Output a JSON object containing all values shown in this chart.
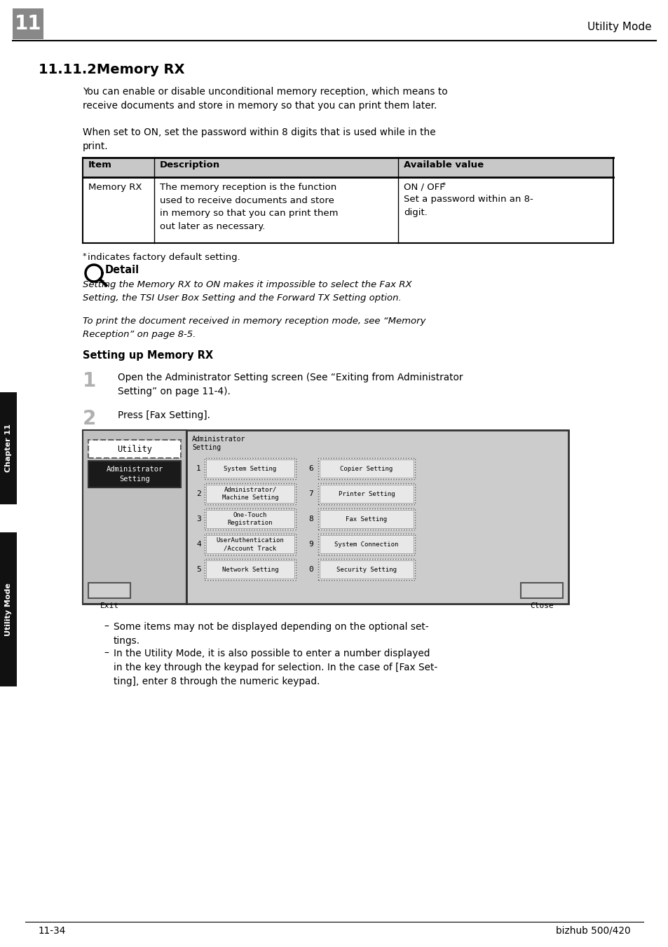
{
  "bg_color": "#ffffff",
  "page_number": "11-34",
  "brand": "bizhub 500/420",
  "header_chapter_num": "11",
  "header_title": "Utility Mode",
  "section_title": "11.11.2Memory RX",
  "para1": "You can enable or disable unconditional memory reception, which means to\nreceive documents and store in memory so that you can print them later.",
  "para2": "When set to ON, set the password within 8 digits that is used while in the\nprint.",
  "table_headers": [
    "Item",
    "Description",
    "Available value"
  ],
  "table_row_item": "Memory RX",
  "table_row_desc": "The memory reception is the function\nused to receive documents and store\nin memory so that you can print them\nout later as necessary.",
  "table_row_value_line1": "ON / OFF",
  "table_row_value_line2": "Set a password within an 8-\ndigit.",
  "footnote_star": "*",
  "footnote_text": "indicates factory default setting.",
  "detail_label": "Detail",
  "detail_italic1": "Setting the Memory RX to ON makes it impossible to select the Fax RX\nSetting, the TSI User Box Setting and the Forward TX Setting option.",
  "detail_italic2": "To print the document received in memory reception mode, see “Memory\nReception” on page 8-5.",
  "subsection": "Setting up Memory RX",
  "step1_num": "1",
  "step1_text": "Open the Administrator Setting screen (See “Exiting from Administrator\nSetting” on page 11-4).",
  "step2_num": "2",
  "step2_text": "Press [Fax Setting].",
  "btn_labels_left": [
    "System Setting",
    "Administrator/\nMachine Setting",
    "One-Touch\nRegistration",
    "UserAuthentication\n/Account Track",
    "Network Setting"
  ],
  "btn_labels_right": [
    "Copier Setting",
    "Printer Setting",
    "Fax Setting",
    "System Connection",
    "Security Setting"
  ],
  "btn_nums_left": [
    "1",
    "2",
    "3",
    "4",
    "5"
  ],
  "btn_nums_right": [
    "6",
    "7",
    "8",
    "9",
    "0"
  ],
  "bullet1": "Some items may not be displayed depending on the optional set-\ntings.",
  "bullet2": "In the Utility Mode, it is also possible to enter a number displayed\nin the key through the keypad for selection. In the case of [Fax Set-\nting], enter 8 through the numeric keypad.",
  "chapter_tab": "Chapter 11",
  "utility_tab": "Utility Mode",
  "header_box_color": "#888888",
  "header_line_color": "#000000",
  "table_header_bg": "#c8c8c8",
  "screen_border": "#444444",
  "screen_bg": "#d8d8d8",
  "admin_btn_bg": "#1a1a1a",
  "side_tab_color": "#111111"
}
